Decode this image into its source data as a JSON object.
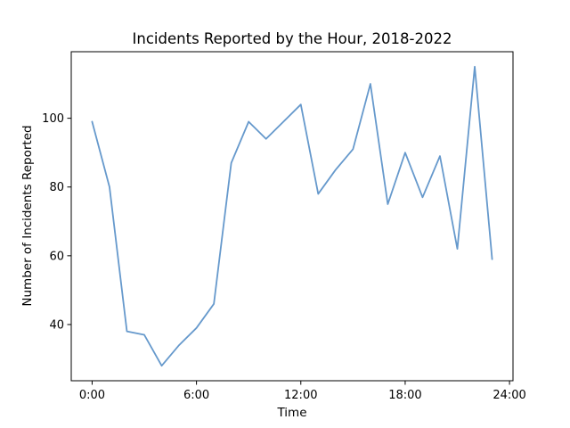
{
  "chart_data": {
    "type": "line",
    "title": "Incidents Reported by the Hour, 2018-2022",
    "xlabel": "Time",
    "ylabel": "Number of Incidents Reported",
    "x": [
      0,
      1,
      2,
      3,
      4,
      5,
      6,
      7,
      8,
      9,
      10,
      11,
      12,
      13,
      14,
      15,
      16,
      17,
      18,
      19,
      20,
      21,
      22,
      23
    ],
    "series": [
      {
        "values": [
          99,
          80,
          38,
          37,
          28,
          34,
          39,
          46,
          87,
          99,
          94,
          99,
          104,
          78,
          85,
          91,
          110,
          75,
          90,
          77,
          89,
          62,
          115,
          59
        ],
        "color": "#6699cc"
      }
    ],
    "xticks": [
      {
        "value": 0,
        "label": "0:00"
      },
      {
        "value": 6,
        "label": "6:00"
      },
      {
        "value": 12,
        "label": "12:00"
      },
      {
        "value": 18,
        "label": "18:00"
      },
      {
        "value": 24,
        "label": "24:00"
      }
    ],
    "yticks": [
      {
        "value": 40,
        "label": "40"
      },
      {
        "value": 60,
        "label": "60"
      },
      {
        "value": 80,
        "label": "80"
      },
      {
        "value": 100,
        "label": "100"
      }
    ],
    "xlim": [
      -1.2,
      24.2
    ],
    "ylim": [
      23.65,
      119.35
    ],
    "grid": false,
    "legend": "none"
  }
}
